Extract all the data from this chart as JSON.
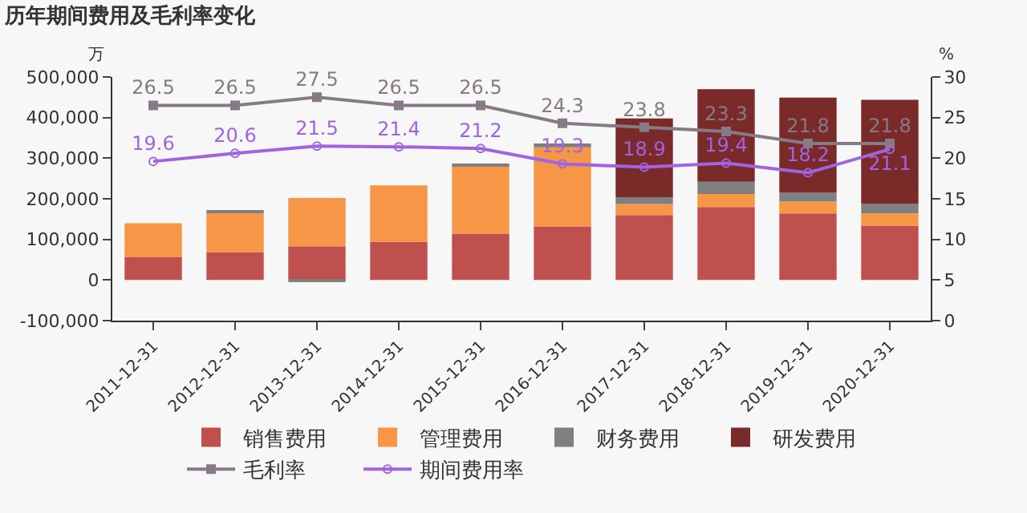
{
  "chart_data": {
    "type": "bar",
    "title": "历年期间费用及毛利率变化",
    "ylabel": "万",
    "y2label": "%",
    "categories": [
      "2011-12-31",
      "2012-12-31",
      "2013-12-31",
      "2014-12-31",
      "2015-12-31",
      "2016-12-31",
      "2017-12-31",
      "2018-12-31",
      "2019-12-31",
      "2020-12-31"
    ],
    "stacked": true,
    "series": [
      {
        "name": "销售费用",
        "color": "#c0504d",
        "values": [
          56000,
          69000,
          83000,
          94000,
          114000,
          132000,
          160000,
          180000,
          164000,
          134000
        ]
      },
      {
        "name": "管理费用",
        "color": "#f79646",
        "values": [
          84000,
          99000,
          119000,
          139000,
          167000,
          195000,
          27000,
          32000,
          29000,
          30000
        ]
      },
      {
        "name": "财务费用",
        "color": "#7f7f7f",
        "values": [
          null,
          2000,
          -3000,
          null,
          5000,
          9000,
          17000,
          30000,
          23000,
          24000
        ]
      },
      {
        "name": "研发费用",
        "color": "#7b2a2a",
        "values": [
          null,
          null,
          null,
          null,
          null,
          null,
          194000,
          228000,
          233000,
          256000
        ]
      },
      {
        "name": "毛利率",
        "type": "line",
        "axis": "y2",
        "color": "#857a85",
        "marker": "square",
        "data_labels": true,
        "values": [
          26.5,
          26.5,
          27.5,
          26.5,
          26.5,
          24.3,
          23.8,
          23.3,
          21.8,
          21.8
        ]
      },
      {
        "name": "期间费用率",
        "type": "line",
        "axis": "y2",
        "color": "#a064e0",
        "marker": "circle",
        "data_labels": true,
        "values": [
          19.6,
          20.6,
          21.5,
          21.4,
          21.2,
          19.3,
          18.9,
          19.4,
          18.2,
          21.1
        ]
      }
    ],
    "ylim": [
      -100000,
      500000
    ],
    "yticks": [
      {
        "value": -100000,
        "label": "-100,000"
      },
      0,
      {
        "value": 100000,
        "label": "100,000"
      },
      {
        "value": 200000,
        "label": "200,000"
      },
      {
        "value": 300000,
        "label": "300,000"
      },
      {
        "value": 400000,
        "label": "400,000"
      },
      {
        "value": 500000,
        "label": "500,000"
      }
    ],
    "y2lim": [
      0,
      30
    ],
    "y2ticks": [
      0,
      5,
      10,
      15,
      20,
      25,
      30
    ],
    "grid": false,
    "legend": "bottom"
  }
}
